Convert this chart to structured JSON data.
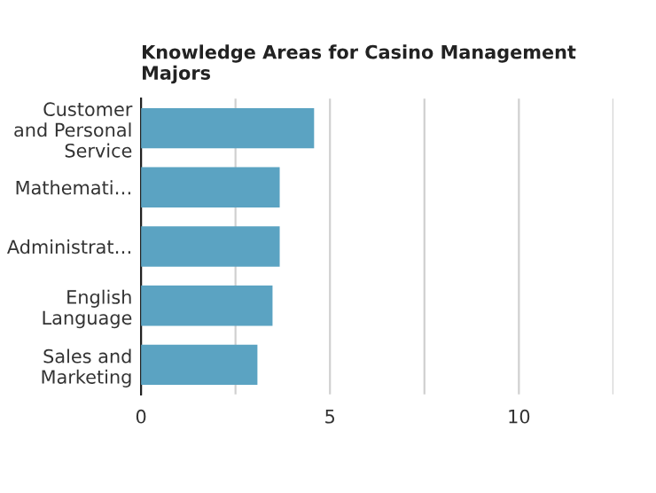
{
  "chart_data": {
    "type": "bar",
    "orientation": "horizontal",
    "title": "Knowledge Areas for Casino Management\nMajors",
    "categories": [
      "Customer\nand Personal\nService",
      "Mathemati…",
      "Administrat…",
      "English\nLanguage",
      "Sales and\nMarketing"
    ],
    "values": [
      4.58,
      3.67,
      3.67,
      3.48,
      3.08
    ],
    "color": "#5ba3c2",
    "xlim": [
      0,
      12.5
    ],
    "xticks": [
      0,
      {
        "value": 2.5,
        "label": null
      },
      5,
      {
        "value": 7.5,
        "label": null
      },
      10,
      {
        "value": 12.5,
        "label": null
      }
    ],
    "grid": "x"
  }
}
